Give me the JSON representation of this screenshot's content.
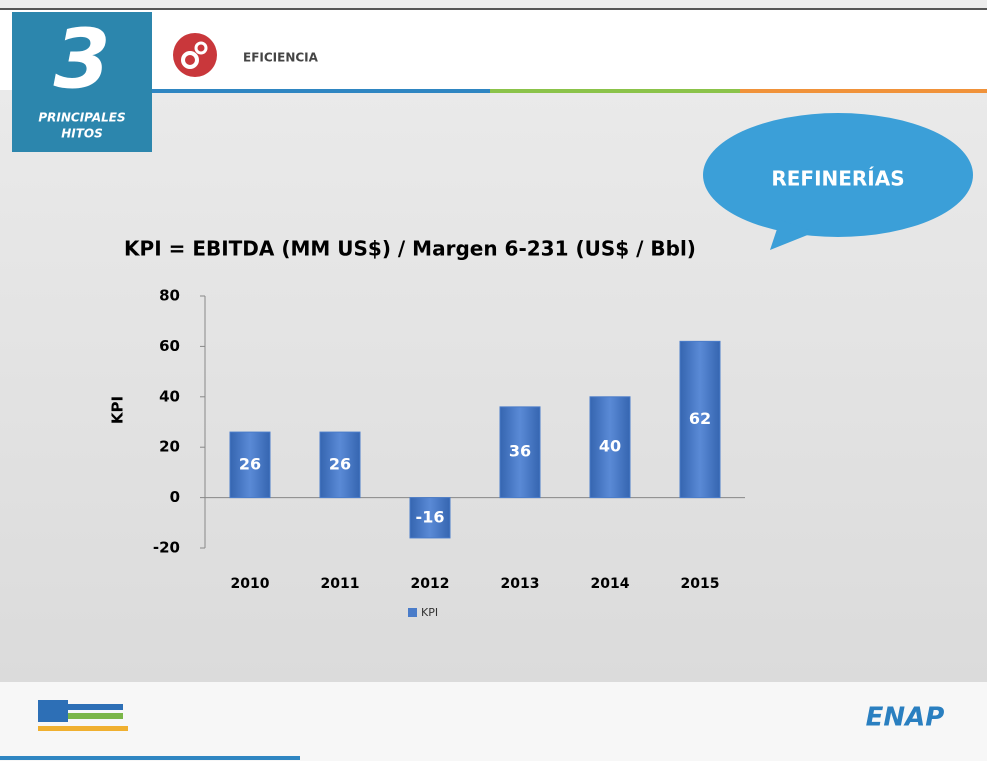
{
  "slide": {
    "number": "3",
    "section": [
      "PRINCIPALES",
      "HITOS"
    ],
    "topic": "EFICIENCIA",
    "callout": "REFINERÍAS",
    "logo": "ENAP"
  },
  "chart_data": {
    "type": "bar",
    "title": "KPI = EBITDA (MM US$) / Margen 6-231 (US$ / Bbl)",
    "y_label": "KPI",
    "categories": [
      "2010",
      "2011",
      "2012",
      "2013",
      "2014",
      "2015"
    ],
    "series": [
      {
        "name": "KPI",
        "color": "#4a7cc9",
        "values": [
          26,
          26,
          -16,
          36,
          40,
          62
        ]
      }
    ],
    "ylim": [
      -20,
      80
    ],
    "yticks": [
      -20,
      0,
      20,
      40,
      60,
      80
    ],
    "grid": false
  }
}
